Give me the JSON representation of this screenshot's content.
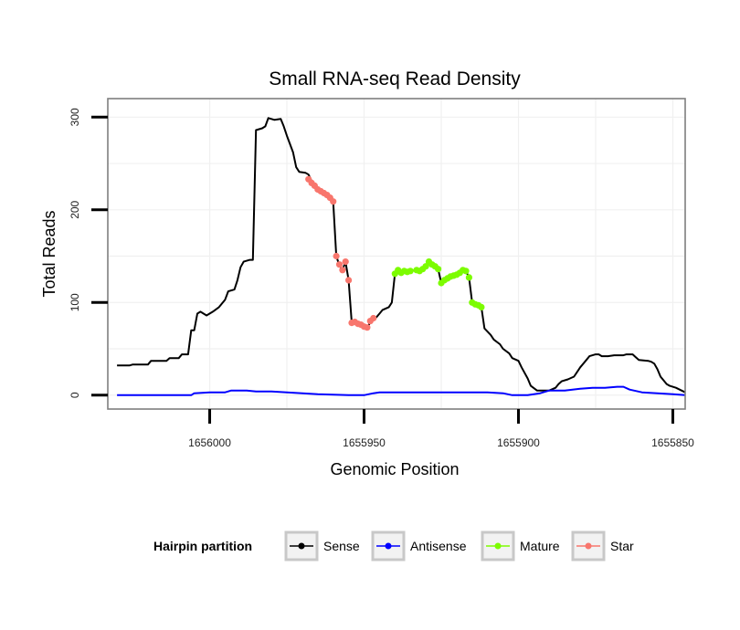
{
  "chart_data": {
    "type": "line",
    "title": "Small RNA-seq Read Density",
    "xlabel": "Genomic Position",
    "ylabel": "Total Reads",
    "xlim": [
      1656033,
      1655846
    ],
    "x_reversed": true,
    "ylim": [
      -15,
      320
    ],
    "x_ticks": [
      1656000,
      1655950,
      1655900,
      1655850
    ],
    "x_tick_labels": [
      "1656000",
      "1655950",
      "1655900",
      "1655850"
    ],
    "y_ticks": [
      0,
      100,
      200,
      300
    ],
    "y_tick_labels": [
      "0",
      "100",
      "200",
      "300"
    ],
    "grid": true,
    "legend": {
      "title": "Hairpin partition",
      "position": "bottom",
      "entries": [
        {
          "label": "Sense",
          "color": "#000000"
        },
        {
          "label": "Antisense",
          "color": "#0000ff"
        },
        {
          "label": "Mature",
          "color": "#7cfc00"
        },
        {
          "label": "Star",
          "color": "#f8766d"
        }
      ]
    },
    "series": [
      {
        "name": "Sense",
        "color": "#000000",
        "marker": false,
        "points": [
          [
            1656030,
            32
          ],
          [
            1656026,
            32
          ],
          [
            1656025,
            33
          ],
          [
            1656020,
            33
          ],
          [
            1656019,
            37
          ],
          [
            1656014,
            37
          ],
          [
            1656013,
            40
          ],
          [
            1656010,
            40
          ],
          [
            1656009,
            44
          ],
          [
            1656007,
            44
          ],
          [
            1656006,
            70
          ],
          [
            1656005,
            70
          ],
          [
            1656004,
            88
          ],
          [
            1656003,
            90
          ],
          [
            1656001,
            86
          ],
          [
            1655999,
            90
          ],
          [
            1655997,
            95
          ],
          [
            1655995,
            103
          ],
          [
            1655994,
            112
          ],
          [
            1655992,
            114
          ],
          [
            1655991,
            124
          ],
          [
            1655990,
            138
          ],
          [
            1655989,
            144
          ],
          [
            1655987,
            146
          ],
          [
            1655986,
            146
          ],
          [
            1655985,
            286
          ],
          [
            1655983,
            288
          ],
          [
            1655982,
            290
          ],
          [
            1655981,
            299
          ],
          [
            1655979,
            297
          ],
          [
            1655977,
            298
          ],
          [
            1655976,
            290
          ],
          [
            1655975,
            280
          ],
          [
            1655973,
            262
          ],
          [
            1655972,
            246
          ],
          [
            1655971,
            241
          ],
          [
            1655969,
            240
          ],
          [
            1655968,
            238
          ],
          [
            1655967,
            231
          ],
          [
            1655966,
            226
          ],
          [
            1655965,
            221
          ],
          [
            1655964,
            220
          ],
          [
            1655963,
            218
          ],
          [
            1655962,
            216
          ],
          [
            1655961,
            213
          ],
          [
            1655960,
            209
          ],
          [
            1655959,
            150
          ],
          [
            1655958,
            140
          ],
          [
            1655957,
            135
          ],
          [
            1655956,
            144
          ],
          [
            1655955,
            124
          ],
          [
            1655954,
            78
          ],
          [
            1655953,
            78
          ],
          [
            1655951,
            76
          ],
          [
            1655950,
            74
          ],
          [
            1655949,
            72
          ],
          [
            1655948,
            79
          ],
          [
            1655946,
            84
          ],
          [
            1655945,
            88
          ],
          [
            1655944,
            92
          ],
          [
            1655942,
            95
          ],
          [
            1655941,
            100
          ],
          [
            1655940,
            131
          ],
          [
            1655938,
            132
          ],
          [
            1655937,
            134
          ],
          [
            1655936,
            133
          ],
          [
            1655935,
            134
          ],
          [
            1655933,
            135
          ],
          [
            1655932,
            134
          ],
          [
            1655931,
            136
          ],
          [
            1655930,
            139
          ],
          [
            1655929,
            144
          ],
          [
            1655928,
            141
          ],
          [
            1655926,
            136
          ],
          [
            1655925,
            121
          ],
          [
            1655924,
            124
          ],
          [
            1655922,
            128
          ],
          [
            1655920,
            130
          ],
          [
            1655918,
            135
          ],
          [
            1655917,
            134
          ],
          [
            1655916,
            127
          ],
          [
            1655915,
            100
          ],
          [
            1655914,
            98
          ],
          [
            1655913,
            97
          ],
          [
            1655912,
            95
          ],
          [
            1655911,
            72
          ],
          [
            1655909,
            65
          ],
          [
            1655908,
            60
          ],
          [
            1655906,
            55
          ],
          [
            1655905,
            50
          ],
          [
            1655903,
            45
          ],
          [
            1655902,
            40
          ],
          [
            1655900,
            37
          ],
          [
            1655899,
            30
          ],
          [
            1655897,
            18
          ],
          [
            1655896,
            10
          ],
          [
            1655894,
            5
          ],
          [
            1655890,
            5
          ],
          [
            1655888,
            8
          ],
          [
            1655887,
            12
          ],
          [
            1655886,
            15
          ],
          [
            1655884,
            17
          ],
          [
            1655882,
            20
          ],
          [
            1655881,
            25
          ],
          [
            1655880,
            30
          ],
          [
            1655878,
            38
          ],
          [
            1655877,
            42
          ],
          [
            1655875,
            44
          ],
          [
            1655874,
            44
          ],
          [
            1655873,
            42
          ],
          [
            1655871,
            42
          ],
          [
            1655869,
            43
          ],
          [
            1655866,
            43
          ],
          [
            1655865,
            44
          ],
          [
            1655863,
            44
          ],
          [
            1655862,
            41
          ],
          [
            1655861,
            38
          ],
          [
            1655858,
            37
          ],
          [
            1655857,
            36
          ],
          [
            1655856,
            34
          ],
          [
            1655855,
            28
          ],
          [
            1655854,
            20
          ],
          [
            1655852,
            12
          ],
          [
            1655851,
            10
          ],
          [
            1655849,
            8
          ],
          [
            1655846,
            3
          ]
        ]
      },
      {
        "name": "Antisense",
        "color": "#0000ff",
        "marker": false,
        "points": [
          [
            1656030,
            0
          ],
          [
            1656006,
            0
          ],
          [
            1656005,
            2
          ],
          [
            1656000,
            3
          ],
          [
            1655995,
            3
          ],
          [
            1655993,
            5
          ],
          [
            1655988,
            5
          ],
          [
            1655985,
            4
          ],
          [
            1655980,
            4
          ],
          [
            1655975,
            3
          ],
          [
            1655970,
            2
          ],
          [
            1655965,
            1
          ],
          [
            1655955,
            0
          ],
          [
            1655950,
            0
          ],
          [
            1655947,
            2
          ],
          [
            1655945,
            3
          ],
          [
            1655935,
            3
          ],
          [
            1655925,
            3
          ],
          [
            1655915,
            3
          ],
          [
            1655910,
            3
          ],
          [
            1655905,
            2
          ],
          [
            1655902,
            0
          ],
          [
            1655897,
            0
          ],
          [
            1655893,
            2
          ],
          [
            1655890,
            5
          ],
          [
            1655885,
            5
          ],
          [
            1655880,
            7
          ],
          [
            1655876,
            8
          ],
          [
            1655872,
            8
          ],
          [
            1655868,
            9
          ],
          [
            1655866,
            9
          ],
          [
            1655864,
            6
          ],
          [
            1655860,
            3
          ],
          [
            1655855,
            2
          ],
          [
            1655850,
            1
          ],
          [
            1655846,
            0
          ]
        ]
      },
      {
        "name": "Mature",
        "color": "#7cfc00",
        "marker": true,
        "points": [
          [
            1655940,
            131
          ],
          [
            1655939,
            135
          ],
          [
            1655938,
            132
          ],
          [
            1655937,
            134
          ],
          [
            1655936,
            133
          ],
          [
            1655935,
            134
          ],
          [
            1655933,
            135
          ],
          [
            1655932,
            134
          ],
          [
            1655931,
            136
          ],
          [
            1655930,
            139
          ],
          [
            1655929,
            144
          ],
          [
            1655928,
            141
          ],
          [
            1655927,
            139
          ],
          [
            1655926,
            136
          ],
          [
            1655925,
            121
          ],
          [
            1655924,
            124
          ],
          [
            1655923,
            126
          ],
          [
            1655922,
            128
          ],
          [
            1655921,
            129
          ],
          [
            1655920,
            130
          ],
          [
            1655919,
            132
          ],
          [
            1655918,
            135
          ],
          [
            1655917,
            134
          ],
          [
            1655916,
            127
          ],
          [
            1655915,
            100
          ],
          [
            1655914,
            98
          ],
          [
            1655913,
            97
          ],
          [
            1655912,
            95
          ]
        ]
      },
      {
        "name": "Star",
        "color": "#f8766d",
        "marker": true,
        "points": [
          [
            1655968,
            233
          ],
          [
            1655967,
            229
          ],
          [
            1655966,
            226
          ],
          [
            1655965,
            222
          ],
          [
            1655964,
            220
          ],
          [
            1655963,
            218
          ],
          [
            1655962,
            216
          ],
          [
            1655961,
            213
          ],
          [
            1655960,
            209
          ],
          [
            1655959,
            150
          ],
          [
            1655958,
            141
          ],
          [
            1655957,
            135
          ],
          [
            1655956,
            144
          ],
          [
            1655955,
            124
          ],
          [
            1655954,
            78
          ],
          [
            1655953,
            79
          ],
          [
            1655952,
            77
          ],
          [
            1655951,
            76
          ],
          [
            1655950,
            74
          ],
          [
            1655949,
            73
          ],
          [
            1655948,
            80
          ],
          [
            1655947,
            83
          ]
        ]
      }
    ]
  }
}
